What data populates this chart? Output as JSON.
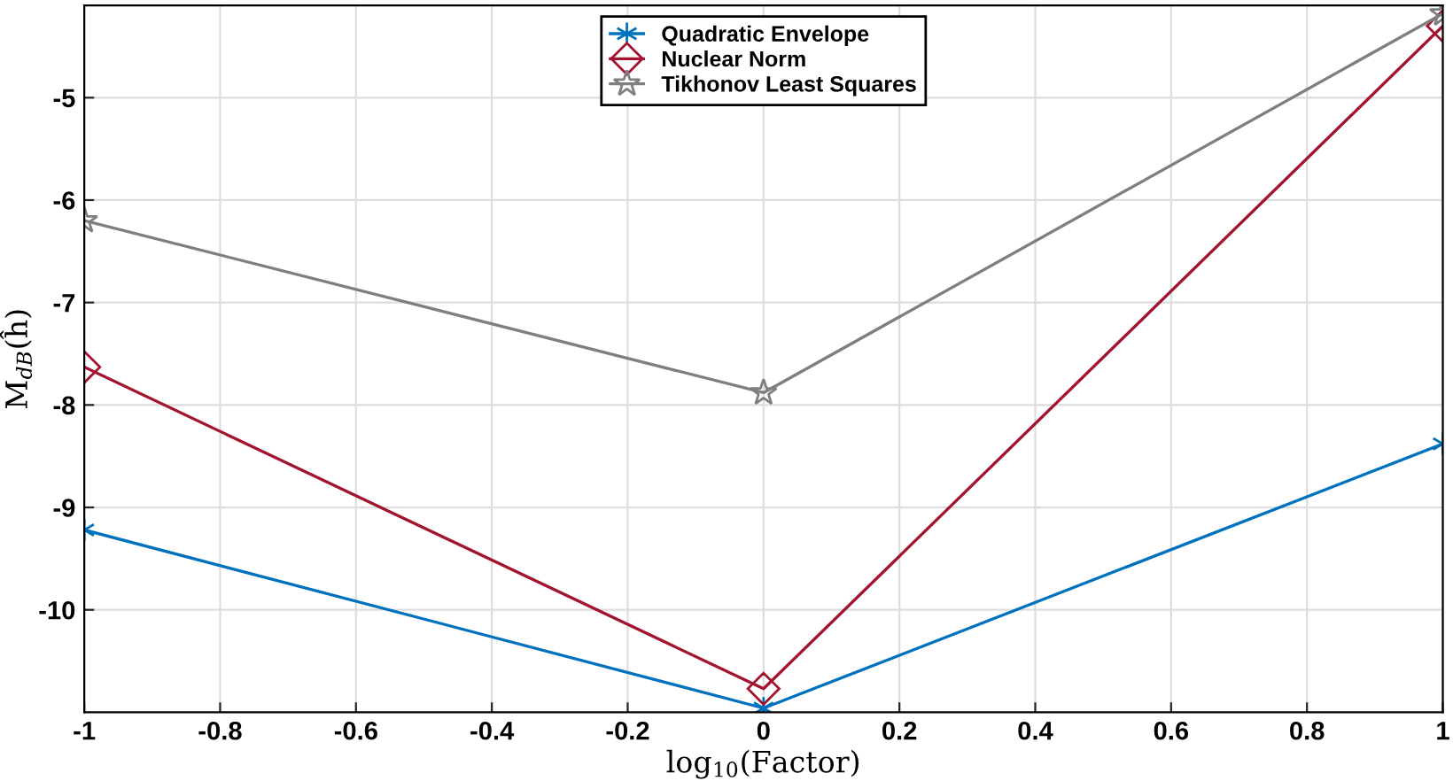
{
  "chart_data": {
    "type": "line",
    "xlabel": "log$_{10}$(Factor)",
    "ylabel": "M$_{dB}$(ĥ)",
    "x": [
      -1,
      0,
      1
    ],
    "series": [
      {
        "name": "Quadratic Envelope",
        "color": "#0072bd",
        "marker": "cross",
        "values": [
          -9.22,
          -10.96,
          -8.38
        ]
      },
      {
        "name": "Nuclear Norm",
        "color": "#a2142f",
        "marker": "diamond",
        "values": [
          -7.63,
          -10.77,
          -4.3
        ]
      },
      {
        "name": "Tikhonov Least Squares",
        "color": "#7f7f7f",
        "marker": "star",
        "values": [
          -6.2,
          -7.88,
          -4.18
        ]
      }
    ],
    "xlim": [
      -1,
      1
    ],
    "xticks": [
      -1,
      -0.8,
      -0.6,
      -0.4,
      -0.2,
      0,
      0.2,
      0.4,
      0.6,
      0.8,
      1
    ],
    "ylim": [
      -11,
      -4.1
    ],
    "yticks": [
      -10,
      -9,
      -8,
      -7,
      -6,
      -5
    ],
    "grid": true,
    "legend": "top"
  }
}
